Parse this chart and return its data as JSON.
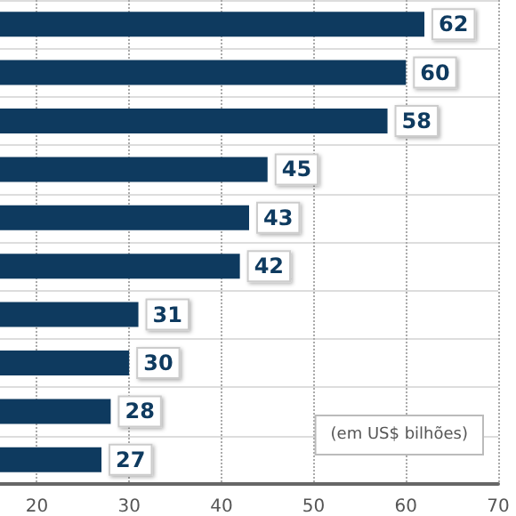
{
  "chart_data": {
    "type": "bar",
    "orientation": "horizontal",
    "categories": [
      null,
      null,
      null,
      null,
      null,
      null,
      null,
      null,
      null,
      null
    ],
    "values": [
      62,
      60,
      58,
      45,
      43,
      42,
      31,
      30,
      28,
      27
    ],
    "color": "#0e3a5f",
    "xlim": [
      16,
      70
    ],
    "xticks": [
      20,
      30,
      40,
      50,
      60,
      70
    ],
    "grid": true,
    "data_labels": true,
    "tick_labels": "x",
    "annotations": [
      "(em US$ bilhões)"
    ]
  }
}
